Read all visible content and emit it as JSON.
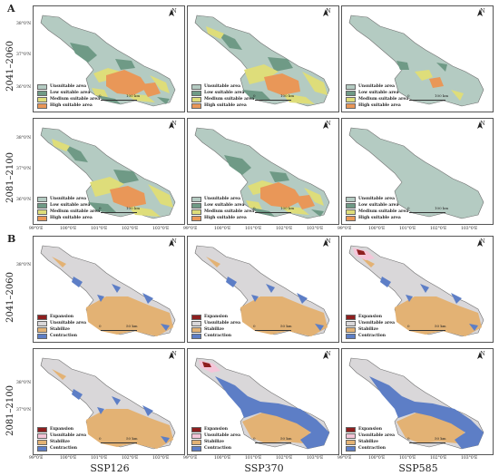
{
  "panels": [
    "A",
    "B"
  ],
  "periods": [
    "2041–2060",
    "2081–2100"
  ],
  "scenarios": [
    "SSP126",
    "SSP370",
    "SSP585"
  ],
  "latitudes_A": [
    "38°0'N",
    "37°0'N",
    "36°0'N"
  ],
  "latitudes_B": [
    "38°0'N",
    "37°0'N"
  ],
  "longitudes": [
    "99°0'E",
    "100°0'E",
    "101°0'E",
    "102°0'E",
    "103°0'E"
  ],
  "north_label": "N",
  "scale_A": {
    "zero": "0",
    "distance": "100 km"
  },
  "scale_B": {
    "zero": "0",
    "distance": "50 km"
  },
  "legend_A": [
    {
      "label": "Unsuitable area",
      "color": "#b4cbc2"
    },
    {
      "label": "Low suitable area",
      "color": "#6f9a86"
    },
    {
      "label": "Medium suitable area",
      "color": "#dedd7a"
    },
    {
      "label": "High suitable area",
      "color": "#e99758"
    }
  ],
  "legend_B": [
    {
      "label": "Expansion",
      "color": "#8e1f1f"
    },
    {
      "label": "Unsuitable area",
      "color": "#d9d7d9"
    },
    {
      "label": "Stabilize",
      "color": "#e3b274"
    },
    {
      "label": "Contraction",
      "color": "#5d7ec6"
    }
  ],
  "legend_B_alt": [
    {
      "label": "Expansion",
      "color": "#8e1f1f"
    },
    {
      "label": "Unsuitable area",
      "color": "#f4c5d8"
    },
    {
      "label": "Stabilize",
      "color": "#e3b274"
    },
    {
      "label": "Contraction",
      "color": "#5d7ec6"
    }
  ],
  "colors": {
    "outline": "#6f6f6f",
    "unsuitable": "#b4cbc2",
    "low": "#6f9a86",
    "medium": "#dedd7a",
    "high": "#e99758",
    "b_unsuitable": "#d9d7d9",
    "b_stable": "#e3b274",
    "b_contraction": "#5d7ec6",
    "b_expansion": "#8e1f1f",
    "b_pink": "#f4c5d8"
  }
}
